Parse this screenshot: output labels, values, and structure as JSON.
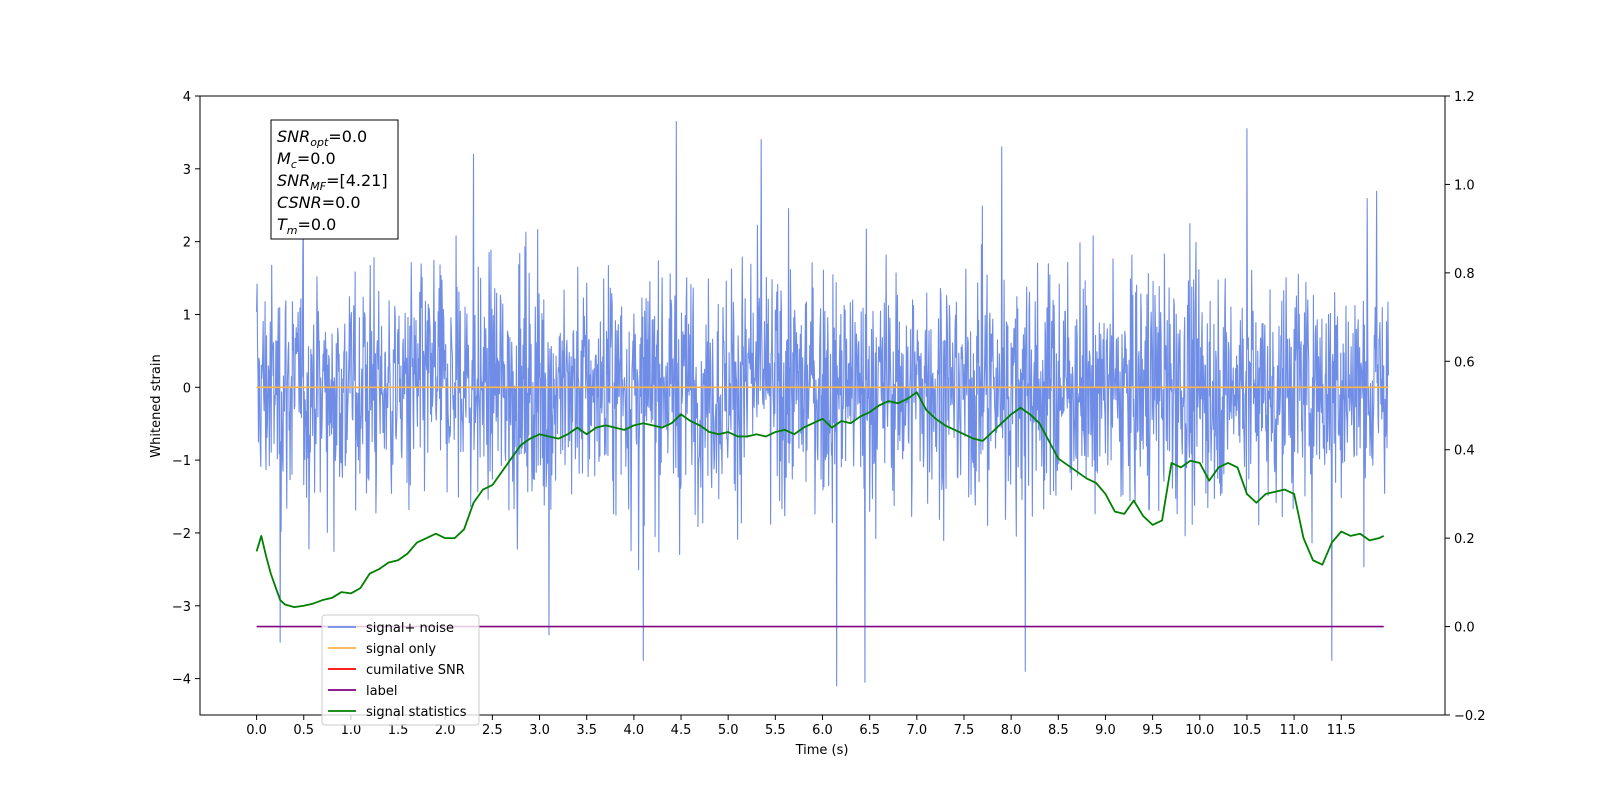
{
  "chart_data": {
    "type": "line",
    "xlabel": "Time (s)",
    "ylabel": "Whitened strain",
    "y2label": "",
    "xlim": [
      -0.6,
      12.6
    ],
    "ylim": [
      -4.5,
      4.0
    ],
    "y2lim": [
      -0.2,
      1.2
    ],
    "xticks": [
      0.0,
      0.5,
      1.0,
      1.5,
      2.0,
      2.5,
      3.0,
      3.5,
      4.0,
      4.5,
      5.0,
      5.5,
      6.0,
      6.5,
      7.0,
      7.5,
      8.0,
      8.5,
      9.0,
      9.5,
      10.0,
      10.5,
      11.0,
      11.5
    ],
    "xtick_labels": [
      "0.0",
      "0.5",
      "1.0",
      "1.5",
      "2.0",
      "2.5",
      "3.0",
      "3.5",
      "4.0",
      "4.5",
      "5.0",
      "5.5",
      "6.0",
      "6.5",
      "7.0",
      "7.5",
      "8.0",
      "8.5",
      "9.0",
      "9.5",
      "10.0",
      "10.5",
      "11.0",
      "11.5"
    ],
    "yticks": [
      -4,
      -3,
      -2,
      -1,
      0,
      1,
      2,
      3,
      4
    ],
    "ytick_labels": [
      "−4",
      "−3",
      "−2",
      "−1",
      "0",
      "1",
      "2",
      "3",
      "4"
    ],
    "y2ticks": [
      -0.2,
      0.0,
      0.2,
      0.4,
      0.6,
      0.8,
      1.0,
      1.2
    ],
    "y2tick_labels": [
      "−0.2",
      "0.0",
      "0.2",
      "0.4",
      "0.6",
      "0.8",
      "1.0",
      "1.2"
    ],
    "grid": false,
    "legend_position": "lower-left",
    "series": [
      {
        "name": "signal+ noise",
        "color": "#6f8de6",
        "axis": "left",
        "kind": "noise",
        "x_range": [
          0.0,
          12.0
        ],
        "envelope_upper": [
          2.2,
          2.4,
          2.6,
          2.5,
          2.3
        ],
        "envelope_lower": [
          -2.2,
          -2.5,
          -2.6,
          -2.4,
          -2.3
        ],
        "peaks": [
          {
            "x": 4.45,
            "y": 3.65
          },
          {
            "x": 10.5,
            "y": 3.55
          },
          {
            "x": 5.35,
            "y": 3.4
          },
          {
            "x": 7.9,
            "y": 3.3
          },
          {
            "x": 2.3,
            "y": 3.2
          },
          {
            "x": 6.15,
            "y": -4.1
          },
          {
            "x": 6.45,
            "y": -4.05
          },
          {
            "x": 8.15,
            "y": -3.9
          },
          {
            "x": 11.4,
            "y": -3.75
          },
          {
            "x": 4.1,
            "y": -3.75
          },
          {
            "x": 0.25,
            "y": -3.5
          },
          {
            "x": 3.1,
            "y": -3.4
          }
        ]
      },
      {
        "name": "signal only",
        "color": "#ffb347",
        "axis": "left",
        "x": [
          0.0,
          12.0
        ],
        "y": [
          0.0,
          0.0
        ]
      },
      {
        "name": "cumilative SNR",
        "color": "#ff0000",
        "axis": "left",
        "x": [],
        "y": []
      },
      {
        "name": "label",
        "color": "#800080",
        "axis": "right",
        "x": [
          0.0,
          11.95
        ],
        "y": [
          0.0,
          0.0
        ]
      },
      {
        "name": "signal statistics",
        "color": "#008000",
        "axis": "right",
        "x": [
          0.0,
          0.05,
          0.1,
          0.15,
          0.2,
          0.25,
          0.3,
          0.4,
          0.5,
          0.6,
          0.7,
          0.8,
          0.9,
          1.0,
          1.1,
          1.2,
          1.3,
          1.4,
          1.5,
          1.6,
          1.7,
          1.8,
          1.9,
          2.0,
          2.1,
          2.2,
          2.3,
          2.4,
          2.5,
          2.6,
          2.7,
          2.8,
          2.9,
          3.0,
          3.1,
          3.2,
          3.3,
          3.4,
          3.5,
          3.6,
          3.7,
          3.8,
          3.9,
          4.0,
          4.1,
          4.2,
          4.3,
          4.4,
          4.5,
          4.6,
          4.7,
          4.8,
          4.9,
          5.0,
          5.1,
          5.2,
          5.3,
          5.4,
          5.5,
          5.6,
          5.7,
          5.8,
          5.9,
          6.0,
          6.1,
          6.2,
          6.3,
          6.4,
          6.5,
          6.6,
          6.7,
          6.8,
          6.9,
          7.0,
          7.1,
          7.2,
          7.3,
          7.4,
          7.5,
          7.6,
          7.7,
          7.8,
          7.9,
          8.0,
          8.1,
          8.2,
          8.3,
          8.4,
          8.5,
          8.6,
          8.7,
          8.8,
          8.9,
          9.0,
          9.1,
          9.2,
          9.3,
          9.4,
          9.5,
          9.6,
          9.7,
          9.8,
          9.9,
          10.0,
          10.1,
          10.2,
          10.3,
          10.4,
          10.5,
          10.6,
          10.7,
          10.8,
          10.9,
          11.0,
          11.1,
          11.2,
          11.3,
          11.4,
          11.5,
          11.6,
          11.7,
          11.8,
          11.9,
          11.95
        ],
        "y": [
          0.17,
          0.205,
          0.16,
          0.12,
          0.09,
          0.06,
          0.05,
          0.044,
          0.047,
          0.052,
          0.06,
          0.065,
          0.078,
          0.075,
          0.087,
          0.12,
          0.13,
          0.145,
          0.15,
          0.165,
          0.19,
          0.2,
          0.21,
          0.2,
          0.2,
          0.22,
          0.28,
          0.31,
          0.32,
          0.35,
          0.38,
          0.41,
          0.425,
          0.435,
          0.43,
          0.425,
          0.435,
          0.45,
          0.435,
          0.45,
          0.455,
          0.45,
          0.445,
          0.455,
          0.46,
          0.455,
          0.45,
          0.46,
          0.48,
          0.465,
          0.455,
          0.44,
          0.435,
          0.44,
          0.43,
          0.43,
          0.435,
          0.43,
          0.44,
          0.445,
          0.435,
          0.45,
          0.46,
          0.47,
          0.45,
          0.465,
          0.46,
          0.475,
          0.485,
          0.5,
          0.51,
          0.505,
          0.515,
          0.53,
          0.49,
          0.47,
          0.455,
          0.445,
          0.435,
          0.425,
          0.42,
          0.44,
          0.46,
          0.48,
          0.495,
          0.48,
          0.46,
          0.42,
          0.38,
          0.365,
          0.35,
          0.335,
          0.325,
          0.3,
          0.26,
          0.255,
          0.285,
          0.25,
          0.23,
          0.24,
          0.37,
          0.36,
          0.375,
          0.37,
          0.33,
          0.36,
          0.37,
          0.36,
          0.3,
          0.28,
          0.3,
          0.305,
          0.31,
          0.3,
          0.2,
          0.15,
          0.14,
          0.19,
          0.215,
          0.205,
          0.21,
          0.195,
          0.2,
          0.205
        ]
      }
    ]
  },
  "info_box": {
    "lines": [
      {
        "sym": "SNR",
        "sub": "opt",
        "val": "=0.0"
      },
      {
        "sym": "M",
        "sub": "c",
        "val": "=0.0"
      },
      {
        "sym": "SNR",
        "sub": "MF",
        "val": "=[4.21]"
      },
      {
        "sym": "CSNR",
        "sub": "",
        "val": "=0.0"
      },
      {
        "sym": "T",
        "sub": "m",
        "val": "=0.0"
      }
    ]
  },
  "legend": {
    "items": [
      {
        "label": "signal+ noise",
        "color": "#6f8de6"
      },
      {
        "label": "signal only",
        "color": "#ffb347"
      },
      {
        "label": "cumilative SNR",
        "color": "#ff0000"
      },
      {
        "label": "label",
        "color": "#800080"
      },
      {
        "label": "signal statistics",
        "color": "#008000"
      }
    ]
  }
}
